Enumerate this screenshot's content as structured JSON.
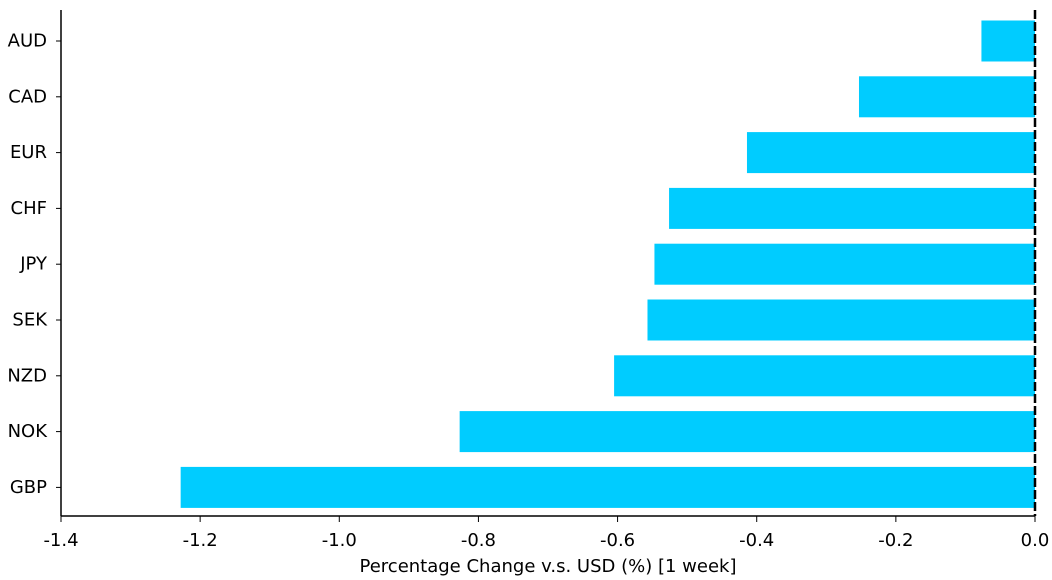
{
  "chart_data": {
    "type": "bar",
    "orientation": "horizontal",
    "categories": [
      "AUD",
      "CAD",
      "EUR",
      "CHF",
      "JPY",
      "SEK",
      "NZD",
      "NOK",
      "GBP"
    ],
    "values": [
      -0.077,
      -0.253,
      -0.414,
      -0.526,
      -0.547,
      -0.557,
      -0.605,
      -0.827,
      -1.228
    ],
    "xlabel": "Percentage Change v.s. USD (%) [1 week]",
    "ylabel": "",
    "xlim": [
      -1.4,
      0.0
    ],
    "xticks": [
      -1.4,
      -1.2,
      -1.0,
      -0.8,
      -0.6,
      -0.4,
      -0.2,
      0.0
    ],
    "xtick_labels": [
      "-1.4",
      "-1.2",
      "-1.0",
      "-0.8",
      "-0.6",
      "-0.4",
      "-0.2",
      "0.0"
    ],
    "grid": false,
    "colors": {
      "bar": "#00CCFF",
      "axis": "#000000",
      "zero_line": "#000000"
    }
  }
}
